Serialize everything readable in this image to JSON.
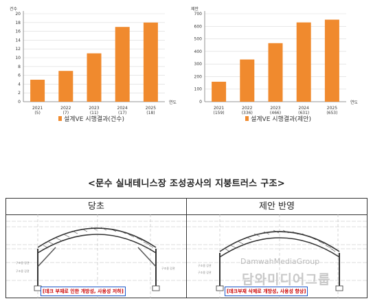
{
  "chart_data": [
    {
      "type": "bar",
      "ylabel": "건수",
      "xlabel": "연도",
      "ylim": [
        0,
        20
      ],
      "yticks": [
        0,
        2,
        4,
        6,
        8,
        10,
        12,
        14,
        16,
        18,
        20
      ],
      "categories": [
        "2021",
        "2022",
        "2023",
        "2024",
        "2025"
      ],
      "category_sublabels": [
        "(5)",
        "(7)",
        "(11)",
        "(17)",
        "(18)"
      ],
      "values": [
        5,
        7,
        11,
        17,
        18
      ],
      "legend": "설계VE 시행결과(건수)",
      "color": "#f08a2e"
    },
    {
      "type": "bar",
      "ylabel": "제안",
      "xlabel": "연도",
      "ylim": [
        0,
        700
      ],
      "yticks": [
        0,
        100,
        200,
        300,
        400,
        500,
        600,
        700
      ],
      "categories": [
        "2021",
        "2022",
        "2023",
        "2024",
        "2025"
      ],
      "category_sublabels": [
        "(159)",
        "(336)",
        "(466)",
        "(631)",
        "(653)"
      ],
      "values": [
        159,
        336,
        466,
        631,
        653
      ],
      "legend": "설계VE 시행결과(제안)",
      "color": "#f08a2e"
    }
  ],
  "caption": "<문수 실내테니스장 조성공사의 지붕트러스 구조>",
  "table": {
    "left_header": "당초",
    "right_header": "제안 반영",
    "left_note": "[데크 부재로 인한 개방성, 사용성 저하]",
    "right_note": "[데크부재 삭제로 개방성, 사용성 향상]"
  },
  "watermark": {
    "line1": "DamwahMediaGroup",
    "line2": "담와미디어그룹"
  }
}
